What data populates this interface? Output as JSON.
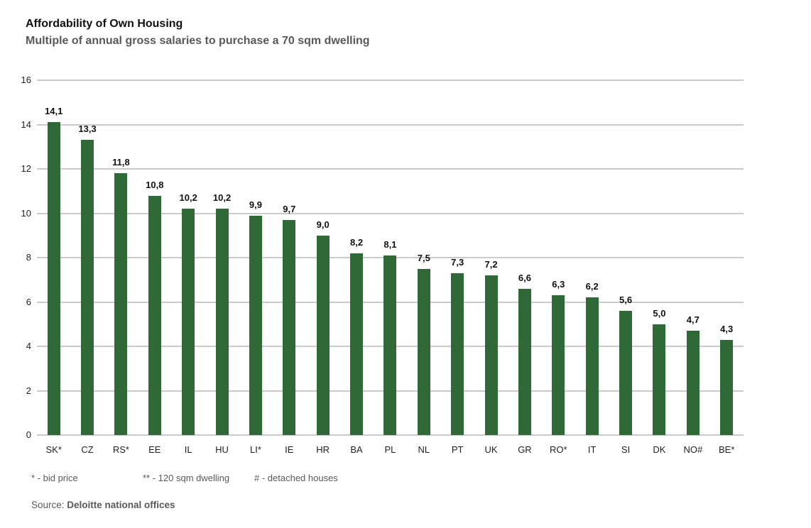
{
  "header": {
    "title": "Affordability of Own Housing",
    "subtitle": "Multiple of annual gross salaries to purchase a 70 sqm dwelling"
  },
  "chart_data": {
    "type": "bar",
    "title": "Affordability of Own Housing",
    "subtitle": "Multiple of annual gross salaries to purchase a 70 sqm dwelling",
    "categories": [
      "SK*",
      "CZ",
      "RS*",
      "EE",
      "IL",
      "HU",
      "LI*",
      "IE",
      "HR",
      "BA",
      "PL",
      "NL",
      "PT",
      "UK",
      "GR",
      "RO*",
      "IT",
      "SI",
      "DK",
      "NO#",
      "BE*"
    ],
    "values": [
      14.1,
      13.3,
      11.8,
      10.8,
      10.2,
      10.2,
      9.9,
      9.7,
      9.0,
      8.2,
      8.1,
      7.5,
      7.3,
      7.2,
      6.6,
      6.3,
      6.2,
      5.6,
      5.0,
      4.7,
      4.3
    ],
    "value_labels": [
      "14,1",
      "13,3",
      "11,8",
      "10,8",
      "10,2",
      "10,2",
      "9,9",
      "9,7",
      "9,0",
      "8,2",
      "8,1",
      "7,5",
      "7,3",
      "7,2",
      "6,6",
      "6,3",
      "6,2",
      "5,6",
      "5,0",
      "4,7",
      "4,3"
    ],
    "xlabel": "",
    "ylabel": "",
    "ylim": [
      0,
      16
    ],
    "y_ticks": [
      0,
      2,
      4,
      6,
      8,
      10,
      12,
      14,
      16
    ],
    "grid": "horizontal",
    "legend": "none",
    "bar_color": "#306938",
    "gridline_color": "#c9cacb"
  },
  "footnotes": [
    "* - bid price",
    "** - 120 sqm dwelling",
    "# - detached houses"
  ],
  "source": {
    "prefix": "Source: ",
    "name": "Deloitte national offices"
  }
}
